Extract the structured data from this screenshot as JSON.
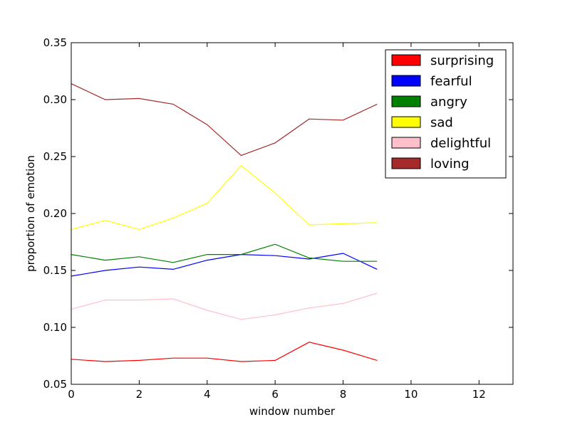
{
  "chart_data": {
    "type": "line",
    "xlabel": "window number",
    "ylabel": "proportion of emotion",
    "xlim": [
      0,
      13
    ],
    "ylim": [
      0.05,
      0.35
    ],
    "xticks": [
      0,
      2,
      4,
      6,
      8,
      10,
      12
    ],
    "yticks": [
      0.05,
      0.1,
      0.15,
      0.2,
      0.25,
      0.3,
      0.35
    ],
    "grid": false,
    "legend_position": "top-right",
    "x": [
      0,
      1,
      2,
      3,
      4,
      5,
      6,
      7,
      8,
      9
    ],
    "series": [
      {
        "name": "surprising",
        "color": "#ff0000",
        "values": [
          0.072,
          0.07,
          0.071,
          0.073,
          0.073,
          0.07,
          0.071,
          0.087,
          0.08,
          0.071
        ]
      },
      {
        "name": "fearful",
        "color": "#0000ff",
        "values": [
          0.145,
          0.15,
          0.153,
          0.151,
          0.159,
          0.164,
          0.163,
          0.16,
          0.165,
          0.151
        ]
      },
      {
        "name": "angry",
        "color": "#008000",
        "values": [
          0.164,
          0.159,
          0.162,
          0.157,
          0.164,
          0.164,
          0.173,
          0.161,
          0.158,
          0.158
        ]
      },
      {
        "name": "sad",
        "color": "#ffff00",
        "values": [
          0.186,
          0.194,
          0.186,
          0.196,
          0.209,
          0.242,
          0.218,
          0.19,
          0.191,
          0.192
        ]
      },
      {
        "name": "delightful",
        "color": "#ffc0cb",
        "values": [
          0.116,
          0.124,
          0.124,
          0.125,
          0.115,
          0.107,
          0.111,
          0.117,
          0.121,
          0.13
        ]
      },
      {
        "name": "loving",
        "color": "#a52a2a",
        "values": [
          0.314,
          0.3,
          0.301,
          0.296,
          0.278,
          0.251,
          0.262,
          0.283,
          0.282,
          0.296
        ]
      }
    ]
  }
}
